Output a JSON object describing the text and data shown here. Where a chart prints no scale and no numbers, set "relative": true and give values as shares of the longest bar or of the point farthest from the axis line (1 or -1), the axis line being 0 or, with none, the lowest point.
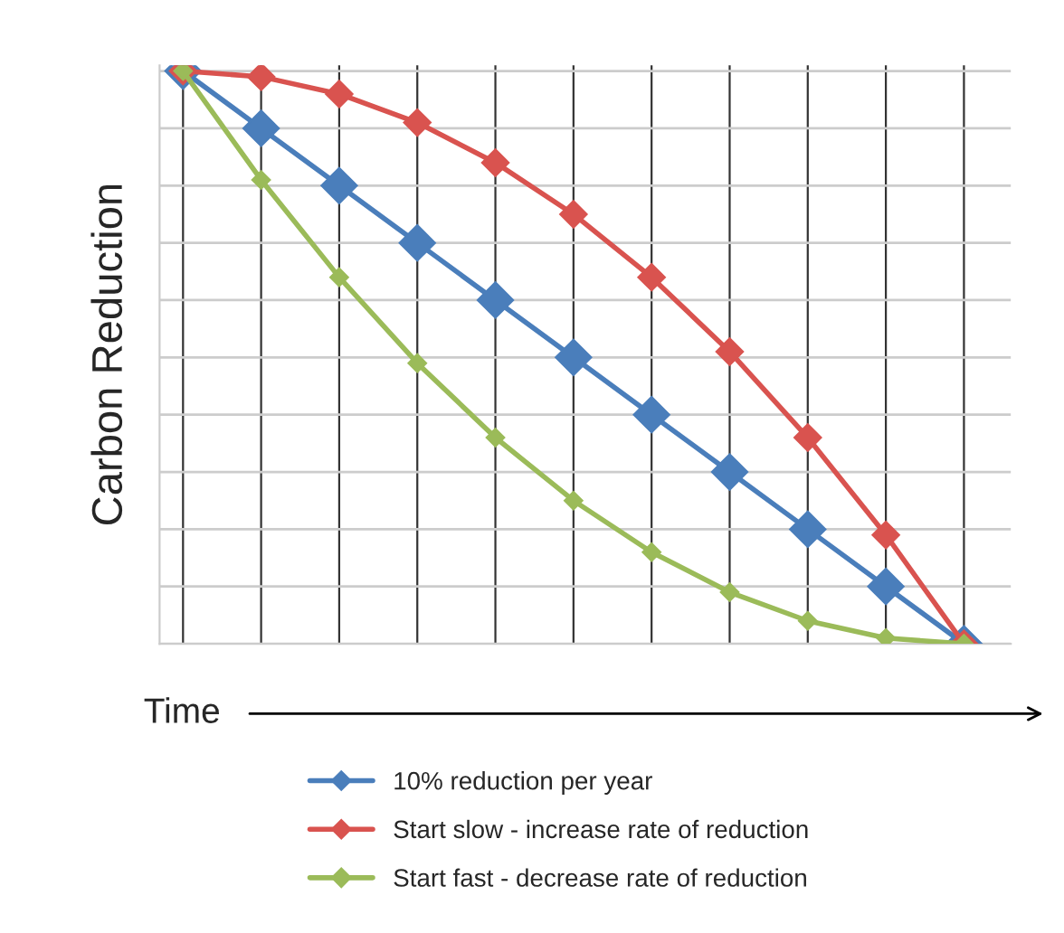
{
  "chart_data": {
    "type": "line",
    "relative": true,
    "xlabel": "Time",
    "ylabel": "Carbon Reduction",
    "categories": [
      null,
      null,
      null,
      null,
      null,
      null,
      null,
      null,
      null,
      null,
      null
    ],
    "marker": "diamond",
    "line_style": "solid",
    "grid": true,
    "legend": "bottom",
    "series": [
      {
        "name": "10% reduction per year",
        "color": "#4a7ebb",
        "values": [
          1,
          0.9,
          0.8,
          0.7,
          0.6,
          0.5,
          0.4,
          0.3,
          0.2,
          0.1,
          0
        ]
      },
      {
        "name": "Start slow - increase rate of reduction",
        "color": "#d9534f",
        "values": [
          1,
          0.99,
          0.96,
          0.91,
          0.84,
          0.75,
          0.64,
          0.51,
          0.36,
          0.19,
          0
        ]
      },
      {
        "name": "Start fast - decrease rate of reduction",
        "color": "#9bbb59",
        "values": [
          1,
          0.81,
          0.64,
          0.49,
          0.36,
          0.25,
          0.16,
          0.09,
          0.04,
          0.01,
          0
        ]
      }
    ]
  }
}
